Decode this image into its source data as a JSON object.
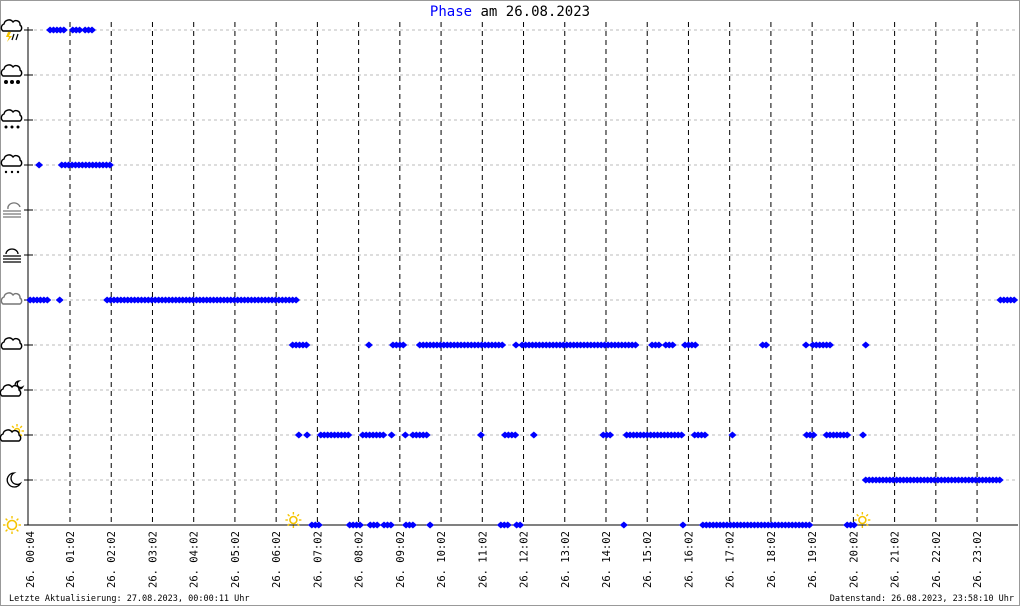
{
  "title": {
    "highlight": "Phase",
    "rest": " am 26.08.2023"
  },
  "footer": {
    "last_update": "Letzte Aktualisierung: 27.08.2023, 00:00:11 Uhr",
    "data_as_of": "Datenstand: 26.08.2023, 23:58:10 Uhr"
  },
  "colors": {
    "marker": "#0000ff",
    "title_highlight": "#0000ff",
    "grid": "#bbbbbb",
    "sun": "#ffcc00"
  },
  "chart_data": {
    "type": "scatter",
    "marker": "diamond",
    "xlim": [
      "00:04",
      "23:58"
    ],
    "x_ticks": [
      "26. 00:04",
      "26. 01:02",
      "26. 02:02",
      "26. 03:02",
      "26. 04:02",
      "26. 05:02",
      "26. 06:02",
      "26. 07:02",
      "26. 08:02",
      "26. 09:02",
      "26. 10:02",
      "26. 11:02",
      "26. 12:02",
      "26. 13:02",
      "26. 14:02",
      "26. 15:02",
      "26. 16:02",
      "26. 17:02",
      "26. 18:02",
      "26. 19:02",
      "26. 20:02",
      "26. 21:02",
      "26. 22:02",
      "26. 23:02"
    ],
    "y_categories": [
      {
        "level": 0,
        "icon": "sunny-icon"
      },
      {
        "level": 1,
        "icon": "clear-night-moon-icon"
      },
      {
        "level": 2,
        "icon": "partly-cloudy-day-icon"
      },
      {
        "level": 3,
        "icon": "partly-cloudy-night-icon"
      },
      {
        "level": 4,
        "icon": "cloudy-icon"
      },
      {
        "level": 5,
        "icon": "overcast-icon"
      },
      {
        "level": 6,
        "icon": "fog-icon"
      },
      {
        "level": 7,
        "icon": "fog-sun-icon"
      },
      {
        "level": 8,
        "icon": "rain-icon"
      },
      {
        "level": 9,
        "icon": "sleet-icon"
      },
      {
        "level": 10,
        "icon": "snow-icon"
      },
      {
        "level": 11,
        "icon": "thunderstorm-icon"
      }
    ],
    "grid": {
      "horizontal": "dashed gray",
      "vertical": "dashed black"
    },
    "events": [
      {
        "icon": "sunrise-sun-icon",
        "time": "06:30"
      },
      {
        "icon": "sunset-moon-icon",
        "time": "20:18"
      }
    ],
    "runs": [
      {
        "level": 11,
        "from": "00:33",
        "to": "00:56"
      },
      {
        "level": 11,
        "from": "01:06",
        "to": "01:17"
      },
      {
        "level": 11,
        "from": "01:24",
        "to": "01:38"
      },
      {
        "level": 8,
        "from": "00:17",
        "to": "00:17"
      },
      {
        "level": 8,
        "from": "00:50",
        "to": "02:02"
      },
      {
        "level": 5,
        "from": "00:04",
        "to": "00:33"
      },
      {
        "level": 5,
        "from": "00:47",
        "to": "00:47"
      },
      {
        "level": 5,
        "from": "01:56",
        "to": "06:31"
      },
      {
        "level": 5,
        "from": "23:36",
        "to": "23:58"
      },
      {
        "level": 4,
        "from": "06:26",
        "to": "06:46"
      },
      {
        "level": 4,
        "from": "08:17",
        "to": "08:17"
      },
      {
        "level": 4,
        "from": "08:52",
        "to": "09:08"
      },
      {
        "level": 4,
        "from": "09:31",
        "to": "11:32"
      },
      {
        "level": 4,
        "from": "11:51",
        "to": "11:51"
      },
      {
        "level": 4,
        "from": "12:00",
        "to": "14:47"
      },
      {
        "level": 4,
        "from": "15:09",
        "to": "15:22"
      },
      {
        "level": 4,
        "from": "15:29",
        "to": "15:40"
      },
      {
        "level": 4,
        "from": "15:57",
        "to": "16:13"
      },
      {
        "level": 4,
        "from": "17:50",
        "to": "17:56"
      },
      {
        "level": 4,
        "from": "18:53",
        "to": "18:53"
      },
      {
        "level": 4,
        "from": "19:03",
        "to": "19:28"
      },
      {
        "level": 4,
        "from": "20:20",
        "to": "20:20"
      },
      {
        "level": 2,
        "from": "06:35",
        "to": "06:35"
      },
      {
        "level": 2,
        "from": "06:47",
        "to": "06:51"
      },
      {
        "level": 2,
        "from": "07:07",
        "to": "07:49"
      },
      {
        "level": 2,
        "from": "08:08",
        "to": "08:39"
      },
      {
        "level": 2,
        "from": "08:50",
        "to": "08:50"
      },
      {
        "level": 2,
        "from": "09:10",
        "to": "09:10"
      },
      {
        "level": 2,
        "from": "09:21",
        "to": "09:43"
      },
      {
        "level": 2,
        "from": "11:00",
        "to": "11:00"
      },
      {
        "level": 2,
        "from": "11:35",
        "to": "11:54"
      },
      {
        "level": 2,
        "from": "12:17",
        "to": "12:17"
      },
      {
        "level": 2,
        "from": "13:58",
        "to": "14:08"
      },
      {
        "level": 2,
        "from": "14:32",
        "to": "15:53"
      },
      {
        "level": 2,
        "from": "16:11",
        "to": "16:26"
      },
      {
        "level": 2,
        "from": "17:06",
        "to": "17:06"
      },
      {
        "level": 2,
        "from": "18:54",
        "to": "19:06"
      },
      {
        "level": 2,
        "from": "19:23",
        "to": "19:54"
      },
      {
        "level": 2,
        "from": "20:16",
        "to": "20:16"
      },
      {
        "level": 1,
        "from": "20:20",
        "to": "23:35"
      },
      {
        "level": 0,
        "from": "06:54",
        "to": "07:08"
      },
      {
        "level": 0,
        "from": "07:49",
        "to": "08:07"
      },
      {
        "level": 0,
        "from": "08:19",
        "to": "08:30"
      },
      {
        "level": 0,
        "from": "08:39",
        "to": "08:52"
      },
      {
        "level": 0,
        "from": "09:11",
        "to": "09:25"
      },
      {
        "level": 0,
        "from": "09:46",
        "to": "09:46"
      },
      {
        "level": 0,
        "from": "11:29",
        "to": "11:40"
      },
      {
        "level": 0,
        "from": "11:52",
        "to": "11:58"
      },
      {
        "level": 0,
        "from": "14:28",
        "to": "14:28"
      },
      {
        "level": 0,
        "from": "15:54",
        "to": "15:54"
      },
      {
        "level": 0,
        "from": "16:23",
        "to": "18:59"
      },
      {
        "level": 0,
        "from": "19:53",
        "to": "20:04"
      }
    ]
  }
}
